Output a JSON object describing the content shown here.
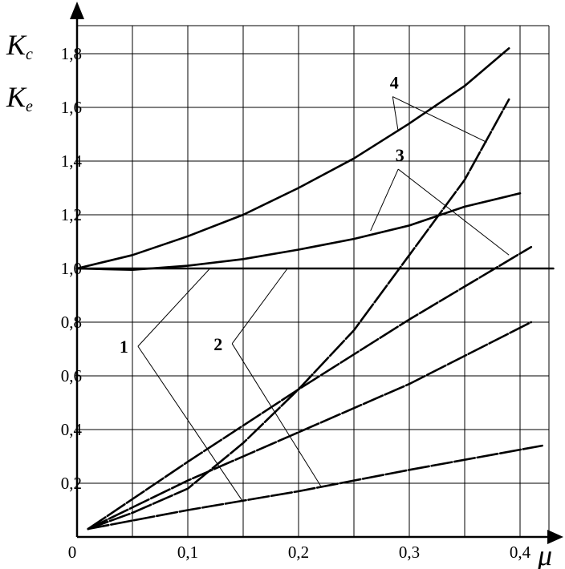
{
  "chart_data": {
    "type": "line",
    "title": "",
    "xlabel": "μ",
    "ylabel_lines": [
      {
        "main": "K",
        "sub": "c"
      },
      {
        "main": "K",
        "sub": "e"
      }
    ],
    "xlim": [
      0,
      0.43
    ],
    "ylim": [
      0,
      1.9
    ],
    "x_ticks": [
      {
        "value": 0.1,
        "label": "0,1"
      },
      {
        "value": 0.2,
        "label": "0,2"
      },
      {
        "value": 0.3,
        "label": "0,3"
      },
      {
        "value": 0.4,
        "label": "0,4"
      }
    ],
    "origin_label": "0",
    "y_ticks": [
      {
        "value": 0.2,
        "label": "0,2"
      },
      {
        "value": 0.4,
        "label": "0,4"
      },
      {
        "value": 0.6,
        "label": "0,6"
      },
      {
        "value": 0.8,
        "label": "0,8"
      },
      {
        "value": 1.0,
        "label": "1,0"
      },
      {
        "value": 1.2,
        "label": "1,2"
      },
      {
        "value": 1.4,
        "label": "1,4"
      },
      {
        "value": 1.6,
        "label": "1,6"
      },
      {
        "value": 1.8,
        "label": "1,8"
      }
    ],
    "grid": true,
    "series": [
      {
        "style": "solid",
        "points": [
          [
            0,
            1.0
          ],
          [
            0.05,
            1.05
          ],
          [
            0.1,
            1.12
          ],
          [
            0.15,
            1.2
          ],
          [
            0.2,
            1.3
          ],
          [
            0.25,
            1.41
          ],
          [
            0.3,
            1.54
          ],
          [
            0.35,
            1.68
          ],
          [
            0.39,
            1.82
          ]
        ]
      },
      {
        "style": "solid",
        "points": [
          [
            0,
            1.0
          ],
          [
            0.05,
            0.995
          ],
          [
            0.1,
            1.01
          ],
          [
            0.15,
            1.035
          ],
          [
            0.2,
            1.07
          ],
          [
            0.25,
            1.11
          ],
          [
            0.3,
            1.16
          ],
          [
            0.35,
            1.23
          ],
          [
            0.4,
            1.28
          ]
        ]
      },
      {
        "style": "solid",
        "points": [
          [
            0,
            1.0
          ],
          [
            0.43,
            1.0
          ]
        ]
      },
      {
        "style": "dashed",
        "points": [
          [
            0.01,
            0.03
          ],
          [
            0.05,
            0.09
          ],
          [
            0.1,
            0.18
          ],
          [
            0.15,
            0.35
          ],
          [
            0.2,
            0.55
          ],
          [
            0.25,
            0.77
          ],
          [
            0.3,
            1.05
          ],
          [
            0.35,
            1.33
          ],
          [
            0.39,
            1.63
          ]
        ]
      },
      {
        "style": "dashed",
        "points": [
          [
            0.01,
            0.03
          ],
          [
            0.1,
            0.28
          ],
          [
            0.2,
            0.55
          ],
          [
            0.3,
            0.81
          ],
          [
            0.41,
            1.08
          ]
        ]
      },
      {
        "style": "dashed",
        "points": [
          [
            0.01,
            0.03
          ],
          [
            0.1,
            0.21
          ],
          [
            0.2,
            0.39
          ],
          [
            0.3,
            0.57
          ],
          [
            0.41,
            0.8
          ]
        ]
      },
      {
        "style": "dashed",
        "points": [
          [
            0.01,
            0.03
          ],
          [
            0.1,
            0.1
          ],
          [
            0.2,
            0.17
          ],
          [
            0.3,
            0.25
          ],
          [
            0.42,
            0.34
          ]
        ]
      }
    ],
    "annotations": [
      {
        "label": "1",
        "at": [
          0.055,
          0.71
        ],
        "targets": [
          [
            0.12,
            1.0
          ],
          [
            0.15,
            0.13
          ]
        ]
      },
      {
        "label": "2",
        "at": [
          0.14,
          0.72
        ],
        "targets": [
          [
            0.19,
            1.0
          ],
          [
            0.22,
            0.19
          ]
        ]
      },
      {
        "label": "3",
        "at": [
          0.29,
          1.37
        ],
        "targets": [
          [
            0.265,
            1.14
          ],
          [
            0.39,
            1.05
          ]
        ]
      },
      {
        "label": "4",
        "at": [
          0.285,
          1.64
        ],
        "targets": [
          [
            0.29,
            1.51
          ],
          [
            0.37,
            1.47
          ]
        ]
      }
    ]
  }
}
